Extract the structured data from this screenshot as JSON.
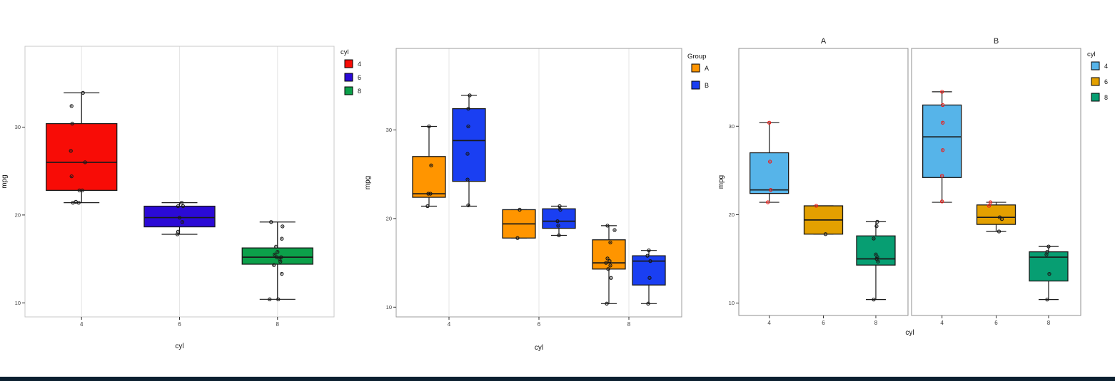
{
  "page": {
    "background": "#FFFFFF",
    "bottom_bar_color": "#0C2030"
  },
  "chart_data": [
    {
      "type": "boxplot",
      "title": "",
      "xlabel": "cyl",
      "ylabel": "mpg",
      "x_categories": [
        "4",
        "6",
        "8"
      ],
      "y_ticks": [
        10,
        20,
        30
      ],
      "ylim": [
        8.4,
        39.2
      ],
      "grid_vertical": true,
      "legend": {
        "title": "cyl",
        "position": "right",
        "items": [
          {
            "label": "4",
            "color": "#F80C06"
          },
          {
            "label": "6",
            "color": "#2B0AD6"
          },
          {
            "label": "8",
            "color": "#0CA04A"
          }
        ]
      },
      "panels": [
        {
          "title": "",
          "groups": [
            {
              "category": "4",
              "cat_index": 0,
              "dodge": 0,
              "color": "#F80C06",
              "point_color": "#1A1A1A",
              "stats": {
                "min": 21.4,
                "q1": 22.8,
                "median": 26.0,
                "q3": 30.4,
                "max": 33.9
              },
              "points": [
                {
                  "y": 33.9,
                  "dx": 2
                },
                {
                  "y": 32.4,
                  "dx": -14
                },
                {
                  "y": 30.4,
                  "dx": -13
                },
                {
                  "y": 27.3,
                  "dx": -15
                },
                {
                  "y": 26.0,
                  "dx": 5
                },
                {
                  "y": 24.4,
                  "dx": -14
                },
                {
                  "y": 22.8,
                  "dx": 1
                },
                {
                  "y": 22.8,
                  "dx": -3
                },
                {
                  "y": 21.5,
                  "dx": -8
                },
                {
                  "y": 21.4,
                  "dx": -12
                },
                {
                  "y": 21.4,
                  "dx": -4
                }
              ]
            },
            {
              "category": "6",
              "cat_index": 1,
              "dodge": 0,
              "color": "#2B0AD6",
              "point_color": "#1A1A1A",
              "stats": {
                "min": 17.8,
                "q1": 18.65,
                "median": 19.7,
                "q3": 21.0,
                "max": 21.4
              },
              "points": [
                {
                  "y": 21.4,
                  "dx": 3
                },
                {
                  "y": 21.0,
                  "dx": -2
                },
                {
                  "y": 21.0,
                  "dx": 5
                },
                {
                  "y": 19.7,
                  "dx": 0
                },
                {
                  "y": 19.2,
                  "dx": 4
                },
                {
                  "y": 18.1,
                  "dx": -2
                },
                {
                  "y": 17.8,
                  "dx": -3
                }
              ]
            },
            {
              "category": "8",
              "cat_index": 2,
              "dodge": 0,
              "color": "#0CA04A",
              "point_color": "#1A1A1A",
              "stats": {
                "min": 10.4,
                "q1": 14.4,
                "median": 15.2,
                "q3": 16.25,
                "max": 19.2
              },
              "points": [
                {
                  "y": 19.2,
                  "dx": -9
                },
                {
                  "y": 18.7,
                  "dx": 7
                },
                {
                  "y": 17.3,
                  "dx": 6
                },
                {
                  "y": 16.4,
                  "dx": -2
                },
                {
                  "y": 15.8,
                  "dx": 0
                },
                {
                  "y": 15.5,
                  "dx": -4
                },
                {
                  "y": 15.2,
                  "dx": -1
                },
                {
                  "y": 15.2,
                  "dx": 5
                },
                {
                  "y": 15.0,
                  "dx": 3
                },
                {
                  "y": 14.7,
                  "dx": 4
                },
                {
                  "y": 14.3,
                  "dx": -5
                },
                {
                  "y": 13.3,
                  "dx": 6
                },
                {
                  "y": 10.4,
                  "dx": -11
                },
                {
                  "y": 10.4,
                  "dx": 1
                }
              ]
            }
          ]
        }
      ]
    },
    {
      "type": "boxplot",
      "title": "",
      "xlabel": "cyl",
      "ylabel": "mpg",
      "x_categories": [
        "4",
        "6",
        "8"
      ],
      "y_ticks": [
        10,
        20,
        30
      ],
      "ylim": [
        8.9,
        39.2
      ],
      "grid_vertical": true,
      "legend": {
        "title": "Group",
        "position": "right",
        "items": [
          {
            "label": "A",
            "color": "#FF9500"
          },
          {
            "label": "B",
            "color": "#1A3FF2"
          }
        ]
      },
      "panels": [
        {
          "title": "",
          "groups": [
            {
              "category": "4",
              "group": "A",
              "cat_index": 0,
              "dodge": -1,
              "color": "#FF9500",
              "point_color": "#151515",
              "stats": {
                "min": 21.4,
                "q1": 22.4,
                "median": 22.8,
                "q3": 27.0,
                "max": 30.4
              },
              "points": [
                {
                  "y": 30.4,
                  "dx": 0
                },
                {
                  "y": 26.0,
                  "dx": 3
                },
                {
                  "y": 22.8,
                  "dx": -1
                },
                {
                  "y": 22.8,
                  "dx": 2
                },
                {
                  "y": 21.4,
                  "dx": -2
                }
              ]
            },
            {
              "category": "4",
              "group": "B",
              "cat_index": 0,
              "dodge": 1,
              "color": "#1A3FF2",
              "point_color": "#151515",
              "stats": {
                "min": 21.4,
                "q1": 24.2,
                "median": 28.8,
                "q3": 32.4,
                "max": 33.9
              },
              "points": [
                {
                  "y": 33.9,
                  "dx": 1
                },
                {
                  "y": 32.4,
                  "dx": -1
                },
                {
                  "y": 30.4,
                  "dx": -1
                },
                {
                  "y": 27.3,
                  "dx": -2
                },
                {
                  "y": 24.4,
                  "dx": -2
                },
                {
                  "y": 21.5,
                  "dx": -1
                }
              ]
            },
            {
              "category": "6",
              "group": "A",
              "cat_index": 1,
              "dodge": -1,
              "color": "#FF9500",
              "point_color": "#151515",
              "stats": {
                "min": 17.8,
                "q1": 17.8,
                "median": 19.4,
                "q3": 21.0,
                "max": 21.0
              },
              "points": [
                {
                  "y": 21.0,
                  "dx": 1
                },
                {
                  "y": 17.8,
                  "dx": -2
                }
              ]
            },
            {
              "category": "6",
              "group": "B",
              "cat_index": 1,
              "dodge": 1,
              "color": "#1A3FF2",
              "point_color": "#151515",
              "stats": {
                "min": 18.1,
                "q1": 18.9,
                "median": 19.7,
                "q3": 21.1,
                "max": 21.4
              },
              "points": [
                {
                  "y": 21.4,
                  "dx": 1
                },
                {
                  "y": 21.0,
                  "dx": 2
                },
                {
                  "y": 19.7,
                  "dx": -2
                },
                {
                  "y": 19.2,
                  "dx": -1
                },
                {
                  "y": 18.1,
                  "dx": 0
                }
              ]
            },
            {
              "category": "8",
              "group": "A",
              "cat_index": 2,
              "dodge": -1,
              "color": "#FF9500",
              "point_color": "#151515",
              "stats": {
                "min": 10.4,
                "q1": 14.3,
                "median": 15.0,
                "q3": 17.6,
                "max": 19.2
              },
              "points": [
                {
                  "y": 19.2,
                  "dx": -2
                },
                {
                  "y": 18.7,
                  "dx": 8
                },
                {
                  "y": 17.3,
                  "dx": 2
                },
                {
                  "y": 15.5,
                  "dx": -2
                },
                {
                  "y": 15.2,
                  "dx": 1
                },
                {
                  "y": 15.0,
                  "dx": -4
                },
                {
                  "y": 14.7,
                  "dx": 2
                },
                {
                  "y": 14.3,
                  "dx": -1
                },
                {
                  "y": 13.3,
                  "dx": 3
                },
                {
                  "y": 10.4,
                  "dx": -3
                }
              ]
            },
            {
              "category": "8",
              "group": "B",
              "cat_index": 2,
              "dodge": 1,
              "color": "#1A3FF2",
              "point_color": "#151515",
              "stats": {
                "min": 10.4,
                "q1": 12.5,
                "median": 15.2,
                "q3": 15.8,
                "max": 16.4
              },
              "points": [
                {
                  "y": 16.4,
                  "dx": 0
                },
                {
                  "y": 15.8,
                  "dx": -2
                },
                {
                  "y": 15.2,
                  "dx": 2
                },
                {
                  "y": 13.3,
                  "dx": 1
                },
                {
                  "y": 10.4,
                  "dx": -1
                }
              ]
            }
          ]
        }
      ]
    },
    {
      "type": "boxplot",
      "title": "",
      "xlabel": "cyl",
      "ylabel": "mpg",
      "x_categories": [
        "4",
        "6",
        "8"
      ],
      "y_ticks": [
        10,
        20,
        30
      ],
      "ylim": [
        8.6,
        38.8
      ],
      "grid_vertical": false,
      "legend": {
        "title": "cyl",
        "position": "right",
        "items": [
          {
            "label": "4",
            "color": "#56B4E9"
          },
          {
            "label": "6",
            "color": "#E3A000"
          },
          {
            "label": "8",
            "color": "#079E72"
          }
        ]
      },
      "panels": [
        {
          "title": "A",
          "groups": [
            {
              "category": "4",
              "cat_index": 0,
              "dodge": 0,
              "color": "#56B4E9",
              "point_color": "#EB1E1A",
              "stats": {
                "min": 21.4,
                "q1": 22.4,
                "median": 22.8,
                "q3": 27.0,
                "max": 30.4
              },
              "points": [
                {
                  "y": 30.4,
                  "dx": 0
                },
                {
                  "y": 26.0,
                  "dx": 1
                },
                {
                  "y": 22.8,
                  "dx": 2
                },
                {
                  "y": 21.4,
                  "dx": -2
                }
              ]
            },
            {
              "category": "6",
              "cat_index": 1,
              "dodge": 0,
              "color": "#E3A000",
              "point_color": "#1A1A1A",
              "stats": {
                "min": 17.8,
                "q1": 17.8,
                "median": 19.4,
                "q3": 21.0,
                "max": 21.0
              },
              "points": [
                {
                  "y": 21.0,
                  "dx": -10,
                  "color": "#EB1E1A"
                },
                {
                  "y": 17.8,
                  "dx": 3
                }
              ]
            },
            {
              "category": "8",
              "cat_index": 2,
              "dodge": 0,
              "color": "#079E72",
              "point_color": "#1A1A1A",
              "stats": {
                "min": 10.4,
                "q1": 14.3,
                "median": 15.0,
                "q3": 17.6,
                "max": 19.2
              },
              "points": [
                {
                  "y": 19.2,
                  "dx": 2
                },
                {
                  "y": 18.7,
                  "dx": 1
                },
                {
                  "y": 17.3,
                  "dx": -3
                },
                {
                  "y": 15.5,
                  "dx": 0
                },
                {
                  "y": 15.2,
                  "dx": 2
                },
                {
                  "y": 15.0,
                  "dx": 1
                },
                {
                  "y": 14.7,
                  "dx": 3
                },
                {
                  "y": 10.4,
                  "dx": -3
                }
              ]
            }
          ]
        },
        {
          "title": "B",
          "groups": [
            {
              "category": "4",
              "cat_index": 0,
              "dodge": 0,
              "color": "#56B4E9",
              "point_color": "#EB1E1A",
              "stats": {
                "min": 21.4,
                "q1": 24.2,
                "median": 28.8,
                "q3": 32.4,
                "max": 33.9
              },
              "points": [
                {
                  "y": 33.9,
                  "dx": 0
                },
                {
                  "y": 32.4,
                  "dx": 1
                },
                {
                  "y": 30.4,
                  "dx": 1
                },
                {
                  "y": 27.3,
                  "dx": 1
                },
                {
                  "y": 24.4,
                  "dx": 0
                },
                {
                  "y": 21.5,
                  "dx": 0
                }
              ]
            },
            {
              "category": "6",
              "cat_index": 1,
              "dodge": 0,
              "color": "#E3A000",
              "point_color": "#1A1A1A",
              "stats": {
                "min": 18.1,
                "q1": 18.9,
                "median": 19.7,
                "q3": 21.1,
                "max": 21.4
              },
              "points": [
                {
                  "y": 21.4,
                  "dx": -8,
                  "color": "#EB1E1A"
                },
                {
                  "y": 21.0,
                  "dx": -10,
                  "color": "#EB1E1A"
                },
                {
                  "y": 19.7,
                  "dx": 5
                },
                {
                  "y": 19.5,
                  "dx": 8
                },
                {
                  "y": 18.1,
                  "dx": 4
                }
              ]
            },
            {
              "category": "8",
              "cat_index": 2,
              "dodge": 0,
              "color": "#079E72",
              "point_color": "#1A1A1A",
              "stats": {
                "min": 10.4,
                "q1": 12.5,
                "median": 15.2,
                "q3": 15.8,
                "max": 16.4
              },
              "points": [
                {
                  "y": 16.4,
                  "dx": 0
                },
                {
                  "y": 15.8,
                  "dx": -2
                },
                {
                  "y": 15.5,
                  "dx": -3
                },
                {
                  "y": 13.3,
                  "dx": 1
                },
                {
                  "y": 10.4,
                  "dx": -2
                }
              ]
            }
          ]
        }
      ]
    }
  ]
}
